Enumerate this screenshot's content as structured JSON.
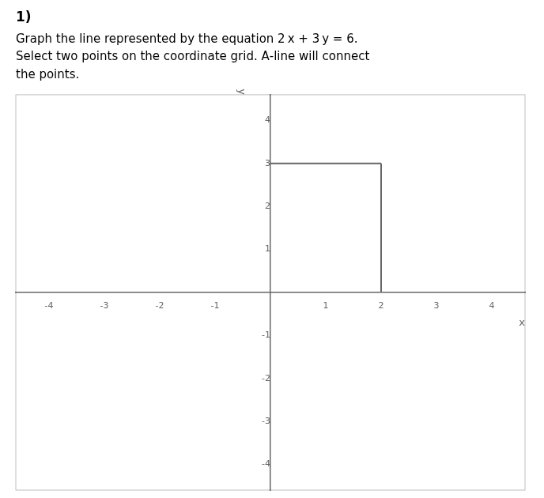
{
  "chart_data": {
    "type": "line",
    "title": "1)",
    "subtitle": [
      "Graph the line represented by the equation 2 x + 3 y = 6.",
      "Select two points on the coordinate grid. A‑line will connect",
      "the points."
    ],
    "xlabel": "x",
    "ylabel": "y",
    "series": [
      {
        "color": "#666666",
        "x": [
          0,
          2
        ],
        "values": [
          3,
          3
        ]
      },
      {
        "color": "#666666",
        "x": [
          2,
          2
        ],
        "values": [
          0,
          3
        ]
      }
    ],
    "xlim": [
      -4.6,
      4.6
    ],
    "ylim": [
      -4.6,
      4.6
    ],
    "xticks": [
      -4,
      -3,
      -2,
      -1,
      1,
      2,
      3,
      4
    ],
    "yticks": [
      -4,
      -3,
      -2,
      -1,
      1,
      2,
      3,
      4
    ],
    "grid": false
  }
}
